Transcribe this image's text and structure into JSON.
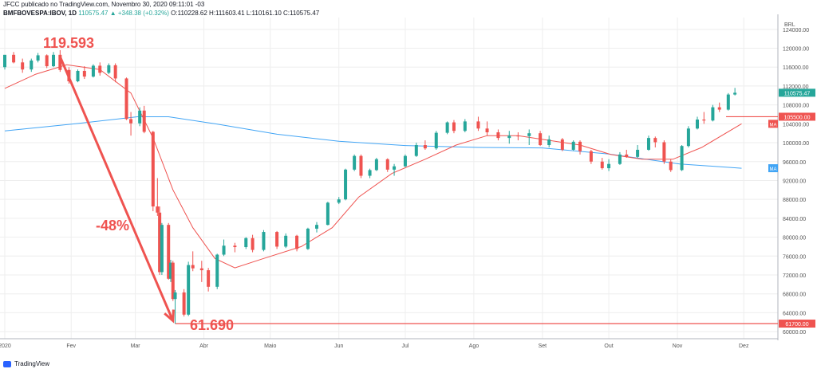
{
  "header": {
    "line1": "JFCC publicado no TradingView.com, Novembro 30, 2020 09:11:01 -03",
    "symbol": "BMFBOVESPA:IBOV, 1D",
    "last": "110575.47",
    "change": "▲ +348.38 (+0.32%)",
    "ohlc": "O:110228.62 H:111603.41 L:110161.10 C:110575.47"
  },
  "footer": {
    "brand": "TradingView"
  },
  "colors": {
    "up": "#26a69a",
    "down": "#ef5350",
    "ma_red": "#ef5350",
    "ma_blue": "#42a5f5",
    "annot": "#ef5350",
    "grid": "#eeeeee"
  },
  "chart_data": {
    "type": "candlestick",
    "currency_label": "BRL",
    "x_tick_labels": [
      "2020",
      "Fev",
      "Mar",
      "Abr",
      "Maio",
      "Jun",
      "Jul",
      "Ago",
      "Set",
      "Out",
      "Nov",
      "Dez"
    ],
    "y_tick_labels": [
      "124000.00",
      "120000.00",
      "116000.00",
      "112000.00",
      "108000.00",
      "104000.00",
      "100000.00",
      "96000.00",
      "92000.00",
      "88000.00",
      "84000.00",
      "80000.00",
      "76000.00",
      "72000.00",
      "68000.00",
      "64000.00",
      "60000.00"
    ],
    "ylim": [
      58500,
      126500
    ],
    "price_badges": [
      {
        "label": "110575.47",
        "value": 110575.47,
        "color": "#26a69a"
      },
      {
        "label": "105500.00",
        "value": 105500,
        "color": "#ef5350"
      },
      {
        "label": "61700.00",
        "value": 61700,
        "color": "#ef5350"
      }
    ],
    "ma_badges": [
      {
        "label": "MA",
        "value": 104000,
        "color": "#ef5350"
      },
      {
        "label": "MA",
        "value": 94600,
        "color": "#42a5f5"
      }
    ],
    "horizontal_lines": [
      {
        "value": 105500,
        "from_date": "2020-11-23"
      },
      {
        "value": 61700,
        "from_date": "2020-03-19"
      }
    ],
    "annotations": {
      "high_label": "119.593",
      "low_label": "61.690",
      "pct_label": "-48%"
    },
    "ma_red": [
      [
        "2020-01-02",
        111500
      ],
      [
        "2020-01-16",
        114500
      ],
      [
        "2020-01-30",
        116500
      ],
      [
        "2020-02-14",
        115500
      ],
      [
        "2020-02-28",
        110500
      ],
      [
        "2020-03-09",
        101000
      ],
      [
        "2020-03-18",
        90000
      ],
      [
        "2020-03-27",
        82000
      ],
      [
        "2020-04-06",
        75500
      ],
      [
        "2020-04-15",
        73500
      ],
      [
        "2020-04-28",
        75500
      ],
      [
        "2020-05-15",
        78000
      ],
      [
        "2020-05-29",
        82000
      ],
      [
        "2020-06-10",
        88500
      ],
      [
        "2020-06-25",
        93500
      ],
      [
        "2020-07-10",
        96500
      ],
      [
        "2020-07-24",
        99500
      ],
      [
        "2020-08-07",
        101500
      ],
      [
        "2020-08-21",
        101500
      ],
      [
        "2020-09-04",
        100500
      ],
      [
        "2020-09-18",
        99500
      ],
      [
        "2020-10-02",
        97500
      ],
      [
        "2020-10-16",
        96500
      ],
      [
        "2020-10-30",
        96500
      ],
      [
        "2020-11-12",
        99000
      ],
      [
        "2020-11-30",
        104000
      ]
    ],
    "ma_blue": [
      [
        "2020-01-02",
        102500
      ],
      [
        "2020-02-03",
        104000
      ],
      [
        "2020-03-02",
        105500
      ],
      [
        "2020-03-16",
        105500
      ],
      [
        "2020-04-06",
        104000
      ],
      [
        "2020-05-04",
        101800
      ],
      [
        "2020-06-01",
        100300
      ],
      [
        "2020-07-01",
        99400
      ],
      [
        "2020-08-03",
        99000
      ],
      [
        "2020-09-01",
        98900
      ],
      [
        "2020-10-01",
        97600
      ],
      [
        "2020-11-02",
        95500
      ],
      [
        "2020-11-30",
        94600
      ]
    ],
    "candles": [
      [
        "2020-01-02",
        116000,
        118600,
        115500,
        118600
      ],
      [
        "2020-01-06",
        118600,
        119200,
        116800,
        117000
      ],
      [
        "2020-01-10",
        117000,
        117800,
        114800,
        115500
      ],
      [
        "2020-01-14",
        115500,
        117800,
        115000,
        117400
      ],
      [
        "2020-01-17",
        117400,
        119000,
        117000,
        118500
      ],
      [
        "2020-01-21",
        118500,
        118700,
        115800,
        116200
      ],
      [
        "2020-01-24",
        116200,
        119200,
        116000,
        118600
      ],
      [
        "2020-01-27",
        118600,
        119593,
        115000,
        115400
      ],
      [
        "2020-01-31",
        115400,
        116000,
        112500,
        113000
      ],
      [
        "2020-02-04",
        113000,
        115500,
        112800,
        115200
      ],
      [
        "2020-02-07",
        115200,
        116200,
        113500,
        114000
      ],
      [
        "2020-02-11",
        114000,
        116600,
        113800,
        116300
      ],
      [
        "2020-02-14",
        116300,
        117000,
        114200,
        114800
      ],
      [
        "2020-02-18",
        114800,
        116800,
        114500,
        116400
      ],
      [
        "2020-02-21",
        116400,
        116800,
        112800,
        113600
      ],
      [
        "2020-02-26",
        113600,
        113800,
        104800,
        105000
      ],
      [
        "2020-02-28",
        105000,
        106500,
        101500,
        104100
      ],
      [
        "2020-03-03",
        104100,
        107500,
        103500,
        106800
      ],
      [
        "2020-03-05",
        106800,
        107800,
        102000,
        102300
      ],
      [
        "2020-03-09",
        102300,
        102500,
        85500,
        86500
      ],
      [
        "2020-03-11",
        86500,
        92500,
        84500,
        85200
      ],
      [
        "2020-03-12",
        85200,
        86500,
        72000,
        72600
      ],
      [
        "2020-03-13",
        72600,
        83000,
        72000,
        82600
      ],
      [
        "2020-03-16",
        82600,
        83000,
        71000,
        71200
      ],
      [
        "2020-03-17",
        71200,
        75200,
        70500,
        74600
      ],
      [
        "2020-03-18",
        74600,
        75000,
        66500,
        66900
      ],
      [
        "2020-03-19",
        66900,
        68800,
        61690,
        68300
      ],
      [
        "2020-03-23",
        68300,
        69000,
        63200,
        63600
      ],
      [
        "2020-03-25",
        63600,
        74800,
        63300,
        74100
      ],
      [
        "2020-03-27",
        74100,
        77000,
        72800,
        73400
      ],
      [
        "2020-03-31",
        73400,
        75000,
        70500,
        73000
      ],
      [
        "2020-04-03",
        73000,
        73500,
        68500,
        69500
      ],
      [
        "2020-04-07",
        69500,
        76500,
        69000,
        76300
      ],
      [
        "2020-04-10",
        76300,
        79500,
        76000,
        78200
      ],
      [
        "2020-04-15",
        78200,
        78800,
        76800,
        77900
      ],
      [
        "2020-04-20",
        77900,
        80000,
        77500,
        79800
      ],
      [
        "2020-04-23",
        79800,
        80500,
        76800,
        77300
      ],
      [
        "2020-04-28",
        77300,
        81500,
        77000,
        81100
      ],
      [
        "2020-05-04",
        81100,
        81300,
        77500,
        78000
      ],
      [
        "2020-05-08",
        78000,
        80800,
        77700,
        80300
      ],
      [
        "2020-05-13",
        80300,
        80500,
        77000,
        77500
      ],
      [
        "2020-05-18",
        77500,
        82000,
        77300,
        81800
      ],
      [
        "2020-05-22",
        81800,
        83200,
        81000,
        82600
      ],
      [
        "2020-05-27",
        82600,
        87500,
        82500,
        87300
      ],
      [
        "2020-06-01",
        87300,
        88500,
        87000,
        88000
      ],
      [
        "2020-06-04",
        88000,
        94500,
        87800,
        94300
      ],
      [
        "2020-06-08",
        94300,
        97500,
        94000,
        97200
      ],
      [
        "2020-06-11",
        97200,
        97500,
        92500,
        93000
      ],
      [
        "2020-06-15",
        93000,
        94500,
        92500,
        94200
      ],
      [
        "2020-06-18",
        94200,
        96800,
        94000,
        96500
      ],
      [
        "2020-06-23",
        96500,
        96700,
        93800,
        94300
      ],
      [
        "2020-06-26",
        94300,
        95500,
        93000,
        95000
      ],
      [
        "2020-07-01",
        95000,
        97500,
        94800,
        97200
      ],
      [
        "2020-07-06",
        97200,
        100000,
        97000,
        99500
      ],
      [
        "2020-07-10",
        99500,
        100500,
        98500,
        98800
      ],
      [
        "2020-07-15",
        98800,
        102500,
        98500,
        102100
      ],
      [
        "2020-07-20",
        102100,
        104500,
        101800,
        104300
      ],
      [
        "2020-07-23",
        104300,
        104800,
        102000,
        102500
      ],
      [
        "2020-07-28",
        102500,
        105000,
        102200,
        104500
      ],
      [
        "2020-08-03",
        104500,
        105500,
        102500,
        103000
      ],
      [
        "2020-08-07",
        103000,
        104500,
        101500,
        102200
      ],
      [
        "2020-08-12",
        102200,
        102800,
        100500,
        101000
      ],
      [
        "2020-08-17",
        101000,
        102500,
        99800,
        101500
      ],
      [
        "2020-08-21",
        101500,
        102200,
        100500,
        101400
      ],
      [
        "2020-08-26",
        101400,
        102800,
        99500,
        102000
      ],
      [
        "2020-08-31",
        102000,
        102500,
        99300,
        99500
      ],
      [
        "2020-09-04",
        99500,
        101500,
        99000,
        100700
      ],
      [
        "2020-09-10",
        100700,
        101000,
        98200,
        98500
      ],
      [
        "2020-09-15",
        98500,
        100500,
        98300,
        100200
      ],
      [
        "2020-09-18",
        100200,
        100500,
        97500,
        98200
      ],
      [
        "2020-09-23",
        98200,
        98500,
        95500,
        96000
      ],
      [
        "2020-09-28",
        96000,
        96800,
        94300,
        94600
      ],
      [
        "2020-10-01",
        94600,
        96500,
        94000,
        95500
      ],
      [
        "2020-10-06",
        95500,
        98000,
        95300,
        97500
      ],
      [
        "2020-10-09",
        97500,
        98500,
        96800,
        97000
      ],
      [
        "2020-10-14",
        97000,
        99500,
        96800,
        98500
      ],
      [
        "2020-10-19",
        98500,
        101500,
        98300,
        101000
      ],
      [
        "2020-10-22",
        101000,
        101300,
        99000,
        100100
      ],
      [
        "2020-10-26",
        100100,
        100500,
        95500,
        96000
      ],
      [
        "2020-10-29",
        96000,
        96500,
        93800,
        94200
      ],
      [
        "2020-11-03",
        94200,
        99500,
        94000,
        99300
      ],
      [
        "2020-11-06",
        99300,
        103500,
        99000,
        103000
      ],
      [
        "2020-11-10",
        103000,
        105500,
        102800,
        104900
      ],
      [
        "2020-11-13",
        104900,
        106500,
        104000,
        104700
      ],
      [
        "2020-11-17",
        104700,
        108000,
        104500,
        107500
      ],
      [
        "2020-11-20",
        107500,
        108500,
        106500,
        107000
      ],
      [
        "2020-11-24",
        107000,
        110500,
        106800,
        110200
      ],
      [
        "2020-11-27",
        110200,
        111603,
        110000,
        110575
      ]
    ]
  }
}
